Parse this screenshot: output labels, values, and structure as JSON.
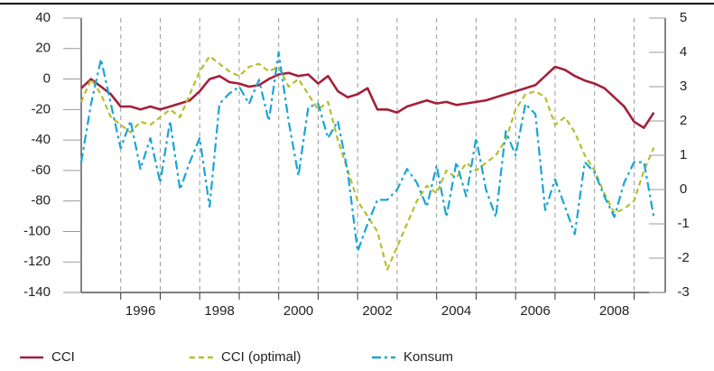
{
  "chart_data": {
    "type": "line",
    "x": [
      1995,
      1995.25,
      1995.5,
      1995.75,
      1996,
      1996.25,
      1996.5,
      1996.75,
      1997,
      1997.25,
      1997.5,
      1997.75,
      1998,
      1998.25,
      1998.5,
      1998.75,
      1999,
      1999.25,
      1999.5,
      1999.75,
      2000,
      2000.25,
      2000.5,
      2000.75,
      2001,
      2001.25,
      2001.5,
      2001.75,
      2002,
      2002.25,
      2002.5,
      2002.75,
      2003,
      2003.25,
      2003.5,
      2003.75,
      2004,
      2004.25,
      2004.5,
      2004.75,
      2005,
      2005.25,
      2005.5,
      2005.75,
      2006,
      2006.25,
      2006.5,
      2006.75,
      2007,
      2007.25,
      2007.5,
      2007.75,
      2008,
      2008.25,
      2008.5,
      2008.75,
      2009,
      2009.25,
      2009.5
    ],
    "series": [
      {
        "name": "CCI",
        "color": "#a3203a",
        "dash": "solid",
        "values": [
          -6,
          0,
          -5,
          -10,
          -18,
          -18,
          -20,
          -18,
          -20,
          -18,
          -16,
          -14,
          -8,
          0,
          2,
          -2,
          -3,
          -5,
          -4,
          0,
          3,
          4,
          2,
          3,
          -3,
          2,
          -8,
          -12,
          -10,
          -6,
          -20,
          -20,
          -22,
          -18,
          -16,
          -14,
          -16,
          -15,
          -17,
          -16,
          -15,
          -14,
          -12,
          -10,
          -8,
          -6,
          -4,
          2,
          8,
          6,
          2,
          -1,
          -3,
          -6,
          -12,
          -18,
          -28,
          -32,
          -22
        ]
      },
      {
        "name": "CCI (optimal)",
        "color": "#b5bf2a",
        "dash": "dashed",
        "values": [
          -15,
          0,
          -10,
          -25,
          -30,
          -35,
          -28,
          -30,
          -25,
          -20,
          -25,
          -10,
          5,
          15,
          10,
          5,
          2,
          8,
          10,
          5,
          8,
          -5,
          0,
          -10,
          -20,
          -15,
          -40,
          -60,
          -80,
          -90,
          -100,
          -125,
          -110,
          -95,
          -80,
          -70,
          -75,
          -60,
          -65,
          -55,
          -60,
          -55,
          -50,
          -40,
          -20,
          -10,
          -8,
          -12,
          -30,
          -25,
          -35,
          -50,
          -60,
          -75,
          -88,
          -85,
          -80,
          -60,
          -45
        ]
      },
      {
        "name": "Konsum",
        "color": "#1aa5d4",
        "dash": "dashdot",
        "axis": "y2",
        "values": [
          0.8,
          2.5,
          3.8,
          2.5,
          1.2,
          2.0,
          0.6,
          1.5,
          0.2,
          2.0,
          0.0,
          0.8,
          1.5,
          -0.5,
          2.5,
          2.8,
          3.0,
          2.5,
          3.2,
          2.0,
          4.0,
          2.0,
          0.4,
          2.4,
          2.5,
          1.5,
          2.0,
          0.5,
          -1.8,
          -1.0,
          -0.3,
          -0.3,
          0.0,
          0.6,
          0.2,
          -0.5,
          0.7,
          -0.8,
          0.8,
          -0.2,
          1.5,
          0.0,
          -0.8,
          1.7,
          1.0,
          2.5,
          2.2,
          -0.6,
          0.3,
          -0.5,
          -1.3,
          0.8,
          0.5,
          -0.2,
          -0.8,
          0.2,
          0.8,
          0.8,
          -0.8
        ]
      }
    ],
    "xlim": [
      1995,
      2009.79
    ],
    "xticks": [
      {
        "value": 1996.5,
        "label": "1996"
      },
      {
        "value": 1998.5,
        "label": "1998"
      },
      {
        "value": 2000.5,
        "label": "2000"
      },
      {
        "value": 2002.5,
        "label": "2002"
      },
      {
        "value": 2004.5,
        "label": "2004"
      },
      {
        "value": 2006.5,
        "label": "2006"
      },
      {
        "value": 2008.5,
        "label": "2008"
      }
    ],
    "xgrid": [
      1996,
      1997,
      1998,
      1999,
      2000,
      2001,
      2002,
      2003,
      2004,
      2005,
      2006,
      2007,
      2008,
      2009
    ],
    "ylim": [
      -140,
      40
    ],
    "yticks": [
      -140,
      -120,
      -100,
      -80,
      -60,
      -40,
      -20,
      0,
      20,
      40
    ],
    "y2lim": [
      -3,
      5
    ],
    "y2ticks": [
      -3,
      -2,
      -1,
      0,
      1,
      2,
      3,
      4,
      5
    ],
    "legend": "bottom"
  }
}
